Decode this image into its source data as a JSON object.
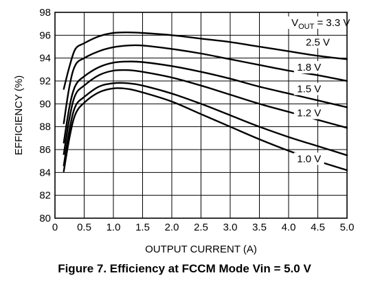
{
  "caption": "Figure 7. Efficiency at FCCM Mode Vin = 5.0 V",
  "chart_data": {
    "type": "line",
    "xlabel": "OUTPUT CURRENT (A)",
    "ylabel": "EFFICIENCY (%)",
    "xlim": [
      0,
      5.0
    ],
    "ylim": [
      80,
      98
    ],
    "x_ticks": [
      "0",
      "0.5",
      "1.0",
      "1.5",
      "2.0",
      "2.5",
      "3.0",
      "3.5",
      "4.0",
      "4.5",
      "5.0"
    ],
    "y_ticks": [
      "80",
      "82",
      "84",
      "86",
      "88",
      "90",
      "92",
      "94",
      "96",
      "98"
    ],
    "grid": true,
    "series": [
      {
        "name": "VOUT = 3.3 V",
        "label_main": "V",
        "label_sub": "OUT",
        "label_rest": " = 3.3 V",
        "x": [
          0.15,
          0.25,
          0.35,
          0.5,
          0.75,
          1.0,
          1.25,
          1.5,
          2.0,
          2.5,
          3.0,
          3.5,
          4.0,
          4.5,
          5.0
        ],
        "y": [
          91.3,
          93.3,
          94.8,
          95.3,
          95.9,
          96.2,
          96.25,
          96.2,
          96.0,
          95.7,
          95.4,
          95.0,
          94.6,
          94.2,
          93.9
        ]
      },
      {
        "name": "2.5 V",
        "x": [
          0.15,
          0.25,
          0.35,
          0.5,
          0.75,
          1.0,
          1.25,
          1.5,
          2.0,
          2.5,
          3.0,
          3.5,
          4.0,
          4.5,
          5.0
        ],
        "y": [
          88.3,
          91.6,
          93.4,
          94.0,
          94.6,
          94.95,
          95.1,
          95.1,
          94.8,
          94.4,
          93.9,
          93.4,
          92.9,
          92.5,
          92.0
        ]
      },
      {
        "name": "1.8 V",
        "x": [
          0.15,
          0.25,
          0.35,
          0.5,
          0.75,
          1.0,
          1.25,
          1.5,
          2.0,
          2.5,
          3.0,
          3.5,
          4.0,
          4.5,
          5.0
        ],
        "y": [
          86.6,
          89.8,
          91.6,
          92.4,
          93.2,
          93.6,
          93.7,
          93.65,
          93.3,
          92.8,
          92.2,
          91.5,
          90.9,
          90.3,
          89.7
        ]
      },
      {
        "name": "1.5 V",
        "x": [
          0.15,
          0.25,
          0.35,
          0.5,
          0.75,
          1.0,
          1.25,
          1.5,
          2.0,
          2.5,
          3.0,
          3.5,
          4.0,
          4.5,
          5.0
        ],
        "y": [
          85.6,
          88.8,
          90.8,
          91.6,
          92.5,
          92.9,
          92.95,
          92.8,
          92.3,
          91.6,
          90.8,
          90.0,
          89.3,
          88.6,
          87.9
        ]
      },
      {
        "name": "1.2 V",
        "x": [
          0.15,
          0.25,
          0.35,
          0.5,
          0.75,
          1.0,
          1.25,
          1.5,
          2.0,
          2.5,
          3.0,
          3.5,
          4.0,
          4.5,
          5.0
        ],
        "y": [
          84.6,
          87.8,
          89.8,
          90.6,
          91.5,
          91.8,
          91.8,
          91.6,
          90.9,
          90.0,
          89.0,
          88.0,
          87.1,
          86.3,
          85.5
        ]
      },
      {
        "name": "1.0 V",
        "x": [
          0.15,
          0.25,
          0.35,
          0.5,
          0.75,
          1.0,
          1.25,
          1.5,
          2.0,
          2.5,
          3.0,
          3.5,
          4.0,
          4.5,
          5.0
        ],
        "y": [
          84.1,
          87.1,
          89.1,
          90.1,
          91.0,
          91.35,
          91.3,
          91.0,
          90.2,
          89.1,
          88.0,
          86.9,
          85.9,
          85.0,
          84.2
        ]
      }
    ]
  }
}
